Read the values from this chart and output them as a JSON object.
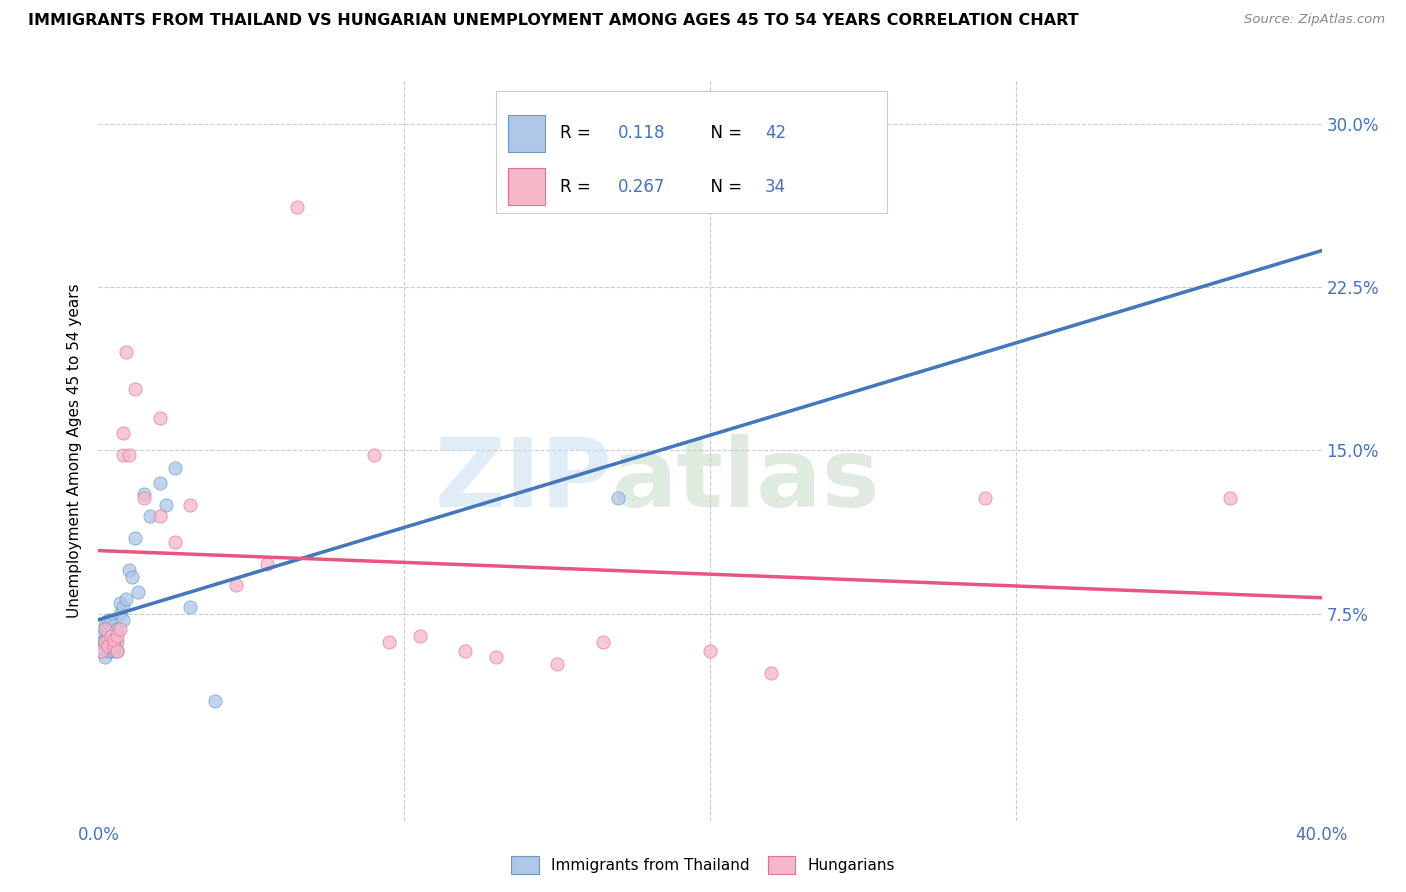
{
  "title": "IMMIGRANTS FROM THAILAND VS HUNGARIAN UNEMPLOYMENT AMONG AGES 45 TO 54 YEARS CORRELATION CHART",
  "source": "Source: ZipAtlas.com",
  "ylabel": "Unemployment Among Ages 45 to 54 years",
  "yticks": [
    "7.5%",
    "15.0%",
    "22.5%",
    "30.0%"
  ],
  "ytick_vals": [
    0.075,
    0.15,
    0.225,
    0.3
  ],
  "xlim": [
    0.0,
    0.4
  ],
  "ylim": [
    -0.02,
    0.32
  ],
  "blue_r": 0.118,
  "blue_n": 42,
  "pink_r": 0.267,
  "pink_n": 34,
  "blue_fill": "#aec6e8",
  "pink_fill": "#f5b8c8",
  "blue_edge": "#6699cc",
  "pink_edge": "#e87090",
  "blue_line": "#4477bb",
  "pink_line": "#e85580",
  "thailand_x": [
    0.001,
    0.001,
    0.001,
    0.002,
    0.002,
    0.002,
    0.002,
    0.002,
    0.003,
    0.003,
    0.003,
    0.003,
    0.003,
    0.003,
    0.004,
    0.004,
    0.004,
    0.004,
    0.005,
    0.005,
    0.005,
    0.005,
    0.006,
    0.006,
    0.006,
    0.007,
    0.007,
    0.008,
    0.008,
    0.009,
    0.01,
    0.011,
    0.012,
    0.013,
    0.015,
    0.017,
    0.02,
    0.022,
    0.025,
    0.03,
    0.17,
    0.038
  ],
  "thailand_y": [
    0.058,
    0.062,
    0.065,
    0.06,
    0.063,
    0.068,
    0.055,
    0.07,
    0.058,
    0.062,
    0.065,
    0.068,
    0.072,
    0.06,
    0.058,
    0.063,
    0.068,
    0.072,
    0.06,
    0.058,
    0.065,
    0.07,
    0.058,
    0.062,
    0.068,
    0.075,
    0.08,
    0.072,
    0.078,
    0.082,
    0.095,
    0.092,
    0.11,
    0.085,
    0.13,
    0.12,
    0.135,
    0.125,
    0.142,
    0.078,
    0.128,
    0.035
  ],
  "hungarian_x": [
    0.001,
    0.002,
    0.002,
    0.003,
    0.004,
    0.005,
    0.005,
    0.006,
    0.006,
    0.007,
    0.008,
    0.008,
    0.009,
    0.01,
    0.012,
    0.015,
    0.02,
    0.02,
    0.025,
    0.03,
    0.045,
    0.055,
    0.065,
    0.09,
    0.095,
    0.105,
    0.12,
    0.13,
    0.15,
    0.165,
    0.2,
    0.22,
    0.29,
    0.37
  ],
  "hungarian_y": [
    0.058,
    0.062,
    0.068,
    0.06,
    0.065,
    0.06,
    0.063,
    0.058,
    0.065,
    0.068,
    0.158,
    0.148,
    0.195,
    0.148,
    0.178,
    0.128,
    0.12,
    0.165,
    0.108,
    0.125,
    0.088,
    0.098,
    0.262,
    0.148,
    0.062,
    0.065,
    0.058,
    0.055,
    0.052,
    0.062,
    0.058,
    0.048,
    0.128,
    0.128
  ],
  "background_color": "#ffffff",
  "grid_color": "#cccccc"
}
